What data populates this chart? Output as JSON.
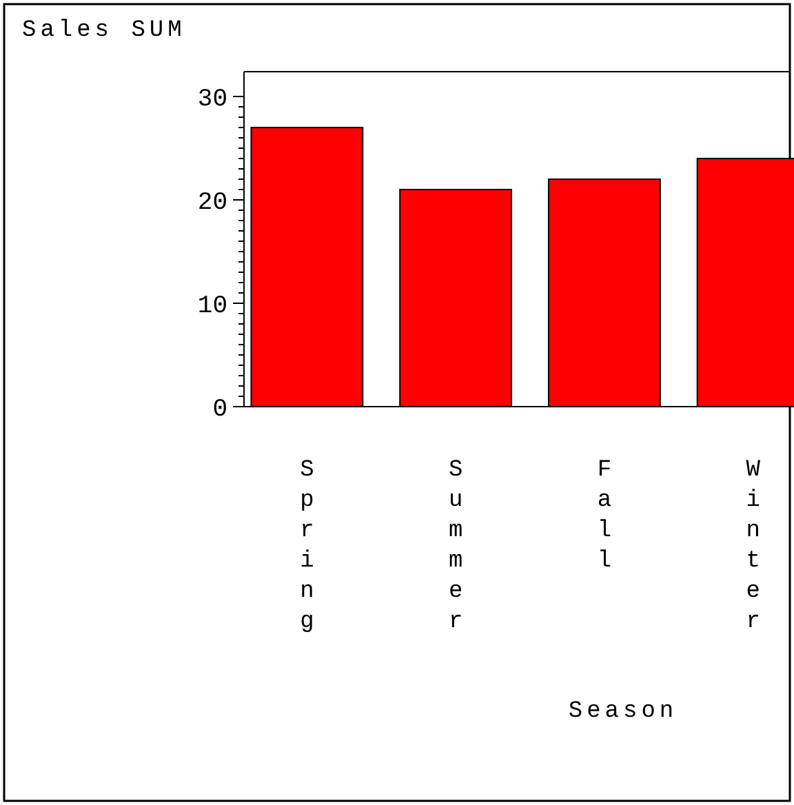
{
  "chart_data": {
    "type": "bar",
    "title": "Sales SUM",
    "xlabel": "Season",
    "categories": [
      "Spring",
      "Summer",
      "Fall",
      "Winter"
    ],
    "values": [
      27,
      21,
      22,
      24
    ],
    "color": "#ff0000",
    "ylim": [
      0,
      32.4
    ],
    "yticks": [
      0,
      {
        "value": 1,
        "label": null
      },
      {
        "value": 2,
        "label": null
      },
      {
        "value": 3,
        "label": null
      },
      {
        "value": 4,
        "label": null
      },
      {
        "value": 5,
        "label": null
      },
      {
        "value": 6,
        "label": null
      },
      {
        "value": 7,
        "label": null
      },
      {
        "value": 8,
        "label": null
      },
      {
        "value": 9,
        "label": null
      },
      10,
      {
        "value": 11,
        "label": null
      },
      {
        "value": 12,
        "label": null
      },
      {
        "value": 13,
        "label": null
      },
      {
        "value": 14,
        "label": null
      },
      {
        "value": 15,
        "label": null
      },
      {
        "value": 16,
        "label": null
      },
      {
        "value": 17,
        "label": null
      },
      {
        "value": 18,
        "label": null
      },
      {
        "value": 19,
        "label": null
      },
      20,
      {
        "value": 21,
        "label": null
      },
      {
        "value": 22,
        "label": null
      },
      {
        "value": 23,
        "label": null
      },
      {
        "value": 24,
        "label": null
      },
      {
        "value": 25,
        "label": null
      },
      {
        "value": 26,
        "label": null
      },
      {
        "value": 27,
        "label": null
      },
      {
        "value": 28,
        "label": null
      },
      {
        "value": 29,
        "label": null
      },
      30
    ],
    "grid": false
  }
}
